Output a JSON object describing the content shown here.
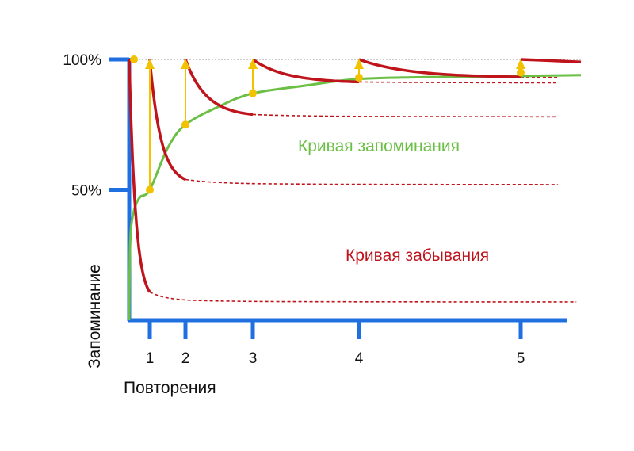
{
  "chart_data": {
    "type": "line",
    "title": "",
    "xlabel": "Повторения",
    "ylabel": "Запоминание",
    "x_ticks": [
      {
        "label": "1",
        "value": 1
      },
      {
        "label": "2",
        "value": 2
      },
      {
        "label": "3",
        "value": 3
      },
      {
        "label": "4",
        "value": 4
      },
      {
        "label": "5",
        "value": 5
      }
    ],
    "y_ticks": [
      {
        "label": "50%",
        "value": 50
      },
      {
        "label": "100%",
        "value": 100
      }
    ],
    "xlim": [
      0,
      6.3
    ],
    "ylim": [
      0,
      100
    ],
    "grid": false,
    "colors": {
      "axis": "#1f6fe0",
      "memorization": "#6bbf45",
      "forgetting": "#c0141c",
      "repetition": "#f2c200"
    },
    "memorization_curve": {
      "name": "Кривая запоминания",
      "x": [
        0,
        0.05,
        0.2,
        0.5,
        1.0,
        1.5,
        2.0,
        2.5,
        3.0,
        3.5,
        4.0,
        4.5,
        5.0,
        5.5,
        6.3
      ],
      "y": [
        0,
        30,
        41,
        47,
        50,
        66,
        75,
        82,
        87,
        90,
        92.5,
        93.3,
        93.6,
        93.8,
        94
      ]
    },
    "forgetting_curve": {
      "name": "Кривая забывания",
      "cycles": [
        {
          "start_x": 0,
          "repeat_x": 1,
          "recall_at_repeat": 50,
          "baseline": 7
        },
        {
          "start_x": 1,
          "repeat_x": 2,
          "recall_at_repeat": 75,
          "baseline": 52
        },
        {
          "start_x": 2,
          "repeat_x": 3,
          "recall_at_repeat": 87,
          "baseline": 78
        },
        {
          "start_x": 3,
          "repeat_x": 4,
          "recall_at_repeat": 93,
          "baseline": 91
        },
        {
          "start_x": 4,
          "repeat_x": 5,
          "recall_at_repeat": 95,
          "baseline": 93
        }
      ],
      "final_segment": {
        "start_x": 5,
        "end_x": 6.3,
        "end_y": 99
      }
    },
    "repetitions": [
      {
        "x": 1,
        "from": 50,
        "to": 100
      },
      {
        "x": 2,
        "from": 75,
        "to": 100
      },
      {
        "x": 3,
        "from": 87,
        "to": 100
      },
      {
        "x": 4,
        "from": 93,
        "to": 100
      },
      {
        "x": 5,
        "from": 95,
        "to": 100
      }
    ],
    "annotations": [
      {
        "text": "Кривая запоминания",
        "series": "memorization"
      },
      {
        "text": "Кривая забывания",
        "series": "forgetting"
      }
    ]
  }
}
